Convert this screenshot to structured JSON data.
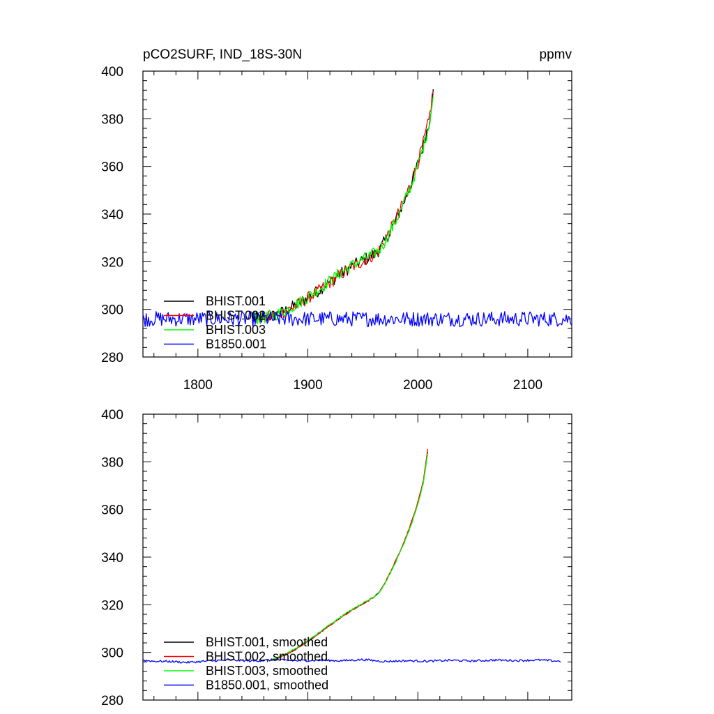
{
  "chart_data": [
    {
      "type": "line",
      "title": "pCO2SURF, IND_18S-30N",
      "units": "ppmv",
      "xlim": [
        1750,
        2140
      ],
      "ylim": [
        280,
        400
      ],
      "xticks": [
        1800,
        1900,
        2000,
        2100
      ],
      "yticks": [
        280,
        300,
        320,
        340,
        360,
        380,
        400
      ],
      "show_xtick_labels": true,
      "legend_position": "bottom-left",
      "series": [
        {
          "name": "BHIST.001",
          "color": "#000000",
          "offset": 0,
          "x": [
            1850,
            1860,
            1870,
            1880,
            1890,
            1900,
            1910,
            1920,
            1930,
            1940,
            1950,
            1960,
            1965,
            1970,
            1975,
            1980,
            1985,
            1990,
            1995,
            2000,
            2005,
            2010,
            2014
          ],
          "y": [
            296,
            296.5,
            297.5,
            299.5,
            302,
            305,
            308,
            311.5,
            315,
            318,
            320.5,
            323,
            325,
            328.5,
            333,
            337.5,
            342.5,
            348,
            354,
            361,
            369,
            378,
            391
          ]
        },
        {
          "name": "BHIST.002",
          "color": "#ff0000",
          "offset": 0,
          "x": [
            1850,
            1860,
            1870,
            1880,
            1890,
            1900,
            1910,
            1920,
            1930,
            1940,
            1950,
            1960,
            1965,
            1970,
            1975,
            1980,
            1985,
            1990,
            1995,
            2000,
            2005,
            2010,
            2014
          ],
          "y": [
            296,
            296.4,
            297.3,
            299.2,
            301.7,
            304.7,
            307.8,
            311.2,
            314.6,
            317.7,
            320.2,
            322.8,
            325,
            328.8,
            333.3,
            338,
            343,
            348.6,
            354.6,
            361.6,
            369.8,
            379,
            392
          ]
        },
        {
          "name": "BHIST.003",
          "color": "#00ff00",
          "offset": 0,
          "x": [
            1850,
            1860,
            1870,
            1880,
            1890,
            1900,
            1910,
            1920,
            1930,
            1940,
            1950,
            1960,
            1965,
            1970,
            1975,
            1980,
            1985,
            1990,
            1995,
            2000,
            2005,
            2010,
            2014
          ],
          "y": [
            296,
            296.6,
            297.7,
            299.6,
            302.2,
            305.3,
            308.4,
            312,
            315.5,
            318.5,
            321,
            323.3,
            325,
            328.3,
            332.6,
            337.2,
            342.3,
            347.6,
            353.4,
            360.4,
            368.2,
            377,
            389
          ]
        },
        {
          "name": "B1850.001",
          "color": "#0000ff",
          "offset": 0,
          "x": [
            1750,
            2140
          ],
          "y": [
            296,
            296
          ]
        }
      ]
    },
    {
      "type": "line",
      "title": "",
      "units": "",
      "xlim": [
        1750,
        2140
      ],
      "ylim": [
        280,
        400
      ],
      "xticks": [
        1800,
        1900,
        2000,
        2100
      ],
      "yticks": [
        280,
        300,
        320,
        340,
        360,
        380,
        400
      ],
      "show_xtick_labels": false,
      "legend_position": "bottom-left",
      "series": [
        {
          "name": "BHIST.001, smoothed",
          "color": "#000000",
          "offset": 0,
          "x": [
            1865,
            1870,
            1880,
            1890,
            1900,
            1910,
            1920,
            1930,
            1940,
            1950,
            1960,
            1965,
            1970,
            1975,
            1980,
            1985,
            1990,
            1995,
            2000,
            2005,
            2009
          ],
          "y": [
            296.5,
            297.3,
            299.2,
            301.8,
            304.8,
            308,
            311.5,
            314.8,
            317.8,
            320.5,
            323.2,
            325.3,
            329,
            333.5,
            338.3,
            343.5,
            349,
            355.3,
            362.5,
            371.5,
            384
          ]
        },
        {
          "name": "BHIST.002, smoothed",
          "color": "#ff0000",
          "offset": 0,
          "x": [
            1865,
            1870,
            1880,
            1890,
            1900,
            1910,
            1920,
            1930,
            1940,
            1950,
            1960,
            1965,
            1970,
            1975,
            1980,
            1985,
            1990,
            1995,
            2000,
            2005,
            2009
          ],
          "y": [
            296.4,
            297.2,
            299,
            301.6,
            304.6,
            307.8,
            311.3,
            314.6,
            317.6,
            320.3,
            323,
            325.3,
            329.2,
            333.7,
            338.6,
            343.8,
            349.4,
            355.8,
            363,
            372.2,
            385.2
          ]
        },
        {
          "name": "BHIST.003, smoothed",
          "color": "#00ff00",
          "offset": 0,
          "x": [
            1865,
            1870,
            1880,
            1890,
            1900,
            1910,
            1920,
            1930,
            1940,
            1950,
            1960,
            1965,
            1970,
            1975,
            1980,
            1985,
            1990,
            1995,
            2000,
            2005,
            2009
          ],
          "y": [
            296.6,
            297.5,
            299.4,
            302,
            305,
            308.2,
            311.7,
            315,
            318.1,
            320.7,
            323.2,
            325.2,
            328.8,
            333.2,
            338,
            343.2,
            348.6,
            354.8,
            362,
            371,
            383.6
          ]
        },
        {
          "name": "B1850.001, smoothed",
          "color": "#0000ff",
          "offset": 0,
          "x": [
            1750,
            1760,
            1775,
            1790,
            1810,
            1830,
            1850,
            1870,
            1890,
            1910,
            1930,
            1950,
            1970,
            1990,
            2010,
            2030,
            2050,
            2070,
            2090,
            2110,
            2130
          ],
          "y": [
            296.7,
            296.3,
            296.2,
            295.8,
            296.4,
            296.8,
            296.4,
            296.9,
            296.5,
            296.7,
            296.5,
            297,
            296.2,
            296.5,
            296.3,
            296.7,
            296.4,
            296.8,
            296.6,
            296.8,
            296.3
          ]
        }
      ]
    }
  ]
}
